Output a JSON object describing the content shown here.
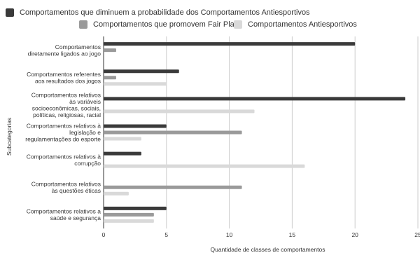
{
  "chart_data": {
    "type": "bar",
    "orientation": "horizontal",
    "categories": [
      [
        "Comportamentos",
        "diretamente ligados ao jogo"
      ],
      [
        "Comportamentos referentes",
        "aos resultados dos jogos"
      ],
      [
        "Comportamentos relativos",
        "às variáveis",
        "socioeconômicas, sociais,",
        "políticas, religiosas, racial"
      ],
      [
        "Comportamentos relativos à",
        "legislação e",
        "regulamentações do esporte"
      ],
      [
        "Comportamentos relativos à",
        "corrupção"
      ],
      [
        "Comportamentos relativos",
        "às questões éticas"
      ],
      [
        "Comportamentos relativos a",
        "saúde e segurança"
      ]
    ],
    "series": [
      {
        "name": "Comportamentos que diminuem a probabilidade dos Comportamentos Antiesportivos",
        "color": "#3a3a3a",
        "values": [
          20,
          6,
          24,
          5,
          3,
          0,
          5
        ]
      },
      {
        "name": "Comportamentos que promovem Fair Play",
        "color": "#9a9a9a",
        "values": [
          1,
          1,
          0,
          11,
          0,
          11,
          4
        ]
      },
      {
        "name": "Comportamentos Antiesportivos",
        "color": "#d9d9d9",
        "values": [
          0,
          5,
          12,
          3,
          16,
          2,
          4
        ]
      }
    ],
    "xlim": [
      0,
      25
    ],
    "xticks": [
      0,
      5,
      10,
      15,
      20,
      25
    ],
    "xlabel": "Quantidade de classes de comportamentos",
    "ylabel": "Subcategorias",
    "grid": "vertical",
    "legend": "top"
  }
}
